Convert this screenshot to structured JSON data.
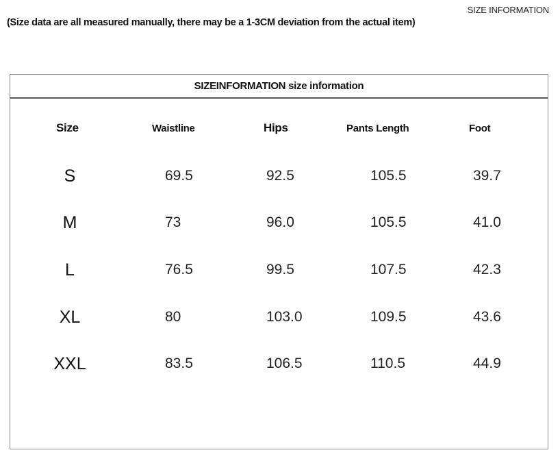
{
  "header": {
    "top_right": "SIZE INFORMATION",
    "note": "(Size data are all measured manually, there may be a 1-3CM deviation from the actual item)"
  },
  "table": {
    "title": "SIZEINFORMATION size information",
    "columns": [
      "Size",
      "Waistline",
      "Hips",
      "Pants Length",
      "Foot"
    ],
    "rows": [
      [
        "S",
        "69.5",
        "92.5",
        "105.5",
        "39.7"
      ],
      [
        "M",
        "73",
        "96.0",
        "105.5",
        "41.0"
      ],
      [
        "L",
        "76.5",
        "99.5",
        "107.5",
        "42.3"
      ],
      [
        "XL",
        "80",
        "103.0",
        "109.5",
        "43.6"
      ],
      [
        "XXL",
        "83.5",
        "106.5",
        "110.5",
        "44.9"
      ]
    ]
  }
}
